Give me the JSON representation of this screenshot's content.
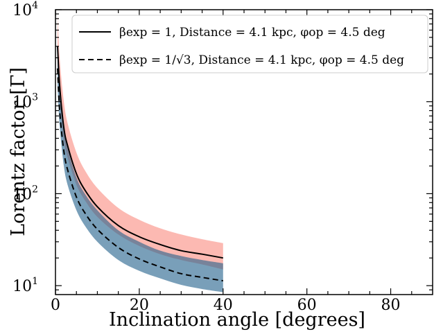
{
  "chart_data": {
    "type": "line",
    "title": "",
    "xlabel": "Inclination angle [degrees]",
    "ylabel": "Lorentz factor [Γ]",
    "xlim": [
      0,
      90
    ],
    "ylim": [
      8,
      10000
    ],
    "yscale": "log",
    "x_ticks": [
      0,
      20,
      40,
      60,
      80
    ],
    "x_tick_labels": [
      "0",
      "20",
      "40",
      "60",
      "80"
    ],
    "y_ticks": [
      10,
      100,
      1000,
      10000
    ],
    "y_tick_labels": [
      {
        "base": "10",
        "exp": "1"
      },
      {
        "base": "10",
        "exp": "2"
      },
      {
        "base": "10",
        "exp": "3"
      },
      {
        "base": "10",
        "exp": "4"
      }
    ],
    "legend_position": "top-right",
    "series": [
      {
        "name": "β_exp = 1, Distance = 4.1 kpc, φ_op = 4.5 deg",
        "legend_label": "βexp = 1, Distance = 4.1 kpc, φop = 4.5 deg",
        "line_style": "solid",
        "color": "#000000",
        "band_color": "#fa8072",
        "x": [
          0.5,
          1,
          2,
          3,
          5,
          7,
          10,
          15,
          20,
          25,
          30,
          35,
          40
        ],
        "values": [
          4000,
          1500,
          520,
          320,
          165,
          110,
          72,
          45,
          34,
          28,
          24,
          22,
          20
        ],
        "band_lower": [
          2800,
          1100,
          380,
          240,
          125,
          85,
          56,
          36,
          27,
          22,
          19,
          17,
          15
        ],
        "band_upper": [
          9000,
          3000,
          1000,
          560,
          280,
          180,
          115,
          70,
          52,
          42,
          36,
          32,
          29
        ]
      },
      {
        "name": "β_exp = 1/√3, Distance = 4.1 kpc, φ_op = 4.5 deg",
        "legend_label": "βexp = 1/√3, Distance = 4.1 kpc, φop = 4.5 deg",
        "line_style": "dashed",
        "color": "#000000",
        "band_color": "#1f5f8b",
        "x": [
          0.5,
          1,
          2,
          3,
          5,
          7,
          10,
          15,
          20,
          25,
          30,
          35,
          40
        ],
        "values": [
          2300,
          800,
          290,
          175,
          92,
          62,
          41,
          26,
          19.5,
          16,
          13.5,
          12.3,
          11.3
        ],
        "band_lower": [
          1500,
          550,
          200,
          120,
          66,
          45,
          30,
          19,
          14.5,
          12,
          10.2,
          9.2,
          8.5
        ],
        "band_upper": [
          4000,
          1400,
          500,
          300,
          150,
          100,
          66,
          40,
          30,
          24,
          21,
          19,
          17.5
        ]
      }
    ]
  }
}
